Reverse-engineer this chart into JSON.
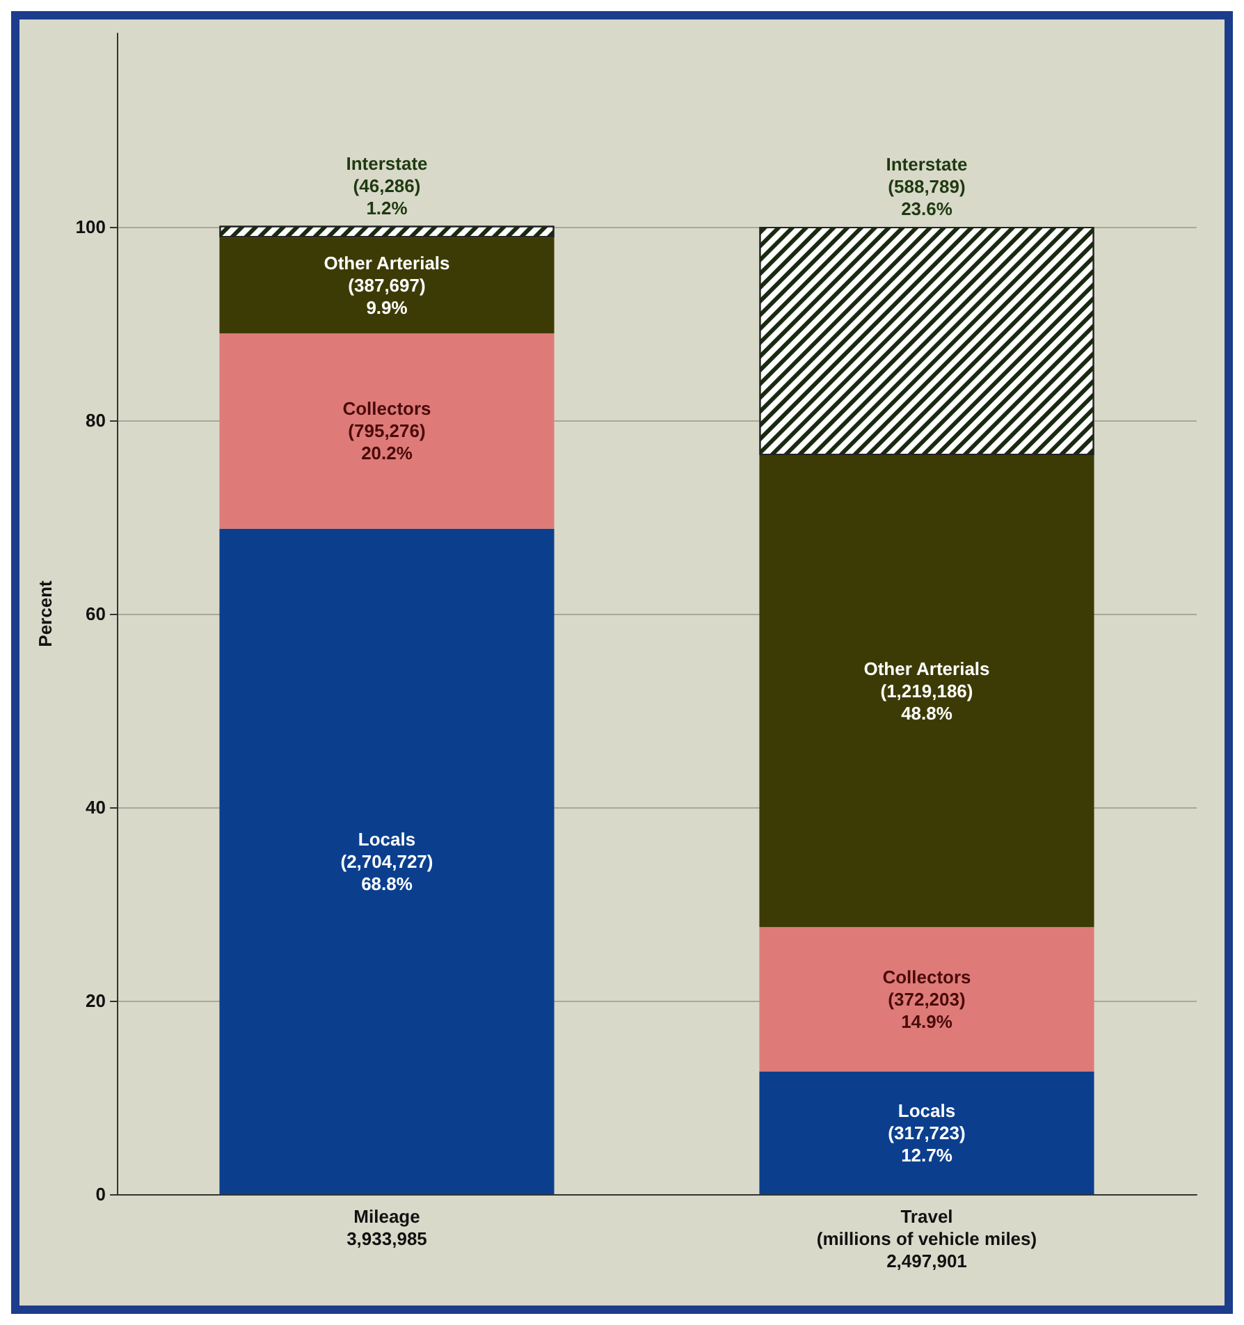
{
  "chart_data": {
    "type": "bar",
    "stacked": true,
    "ylabel": "Percent",
    "categories": [
      "Mileage\n3,933,985",
      "Travel\n(millions of vehicle miles)\n2,497,901"
    ],
    "series": [
      {
        "name": "Locals",
        "color": "#0b3f8e",
        "values": [
          68.8,
          12.7
        ],
        "value_labels": [
          "(2,704,727)\n68.8%",
          "(317,723)\n12.7%"
        ]
      },
      {
        "name": "Collectors",
        "color": "#de7b78",
        "values": [
          20.2,
          14.9
        ],
        "value_labels": [
          "(795,276)\n20.2%",
          "(372,203)\n14.9%"
        ]
      },
      {
        "name": "Other Arterials",
        "color": "#3d3b05",
        "values": [
          9.9,
          48.8
        ],
        "value_labels": [
          "(387,697)\n9.9%",
          "(1,219,186)\n48.8%"
        ]
      },
      {
        "name": "Interstate",
        "color": "#ffffff",
        "values": [
          1.2,
          23.6
        ],
        "value_labels": [
          "(46,286)\n1.2%",
          "(588,789)\n23.6%"
        ]
      }
    ],
    "ylim": [
      0,
      120
    ],
    "yticks": [
      0,
      20,
      40,
      60,
      80,
      100
    ],
    "grid": "y",
    "legend": false
  }
}
